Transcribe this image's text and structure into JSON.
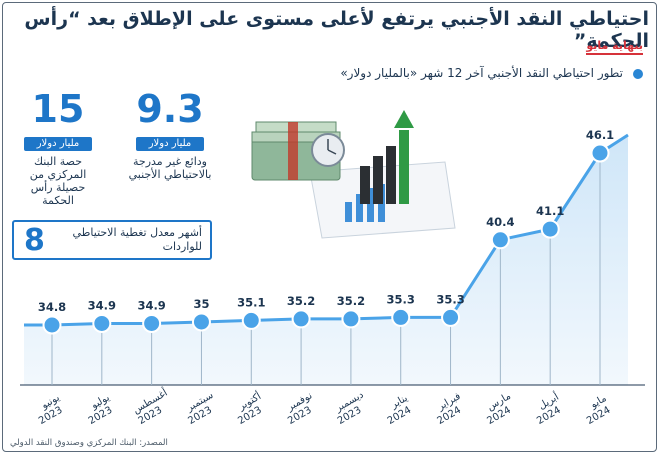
{
  "title": "احتياطي النقد الأجنبي يرتفع لأعلى مستوى على الإطلاق بعد “رأس الحكمة”",
  "tag": "بنهاية مايو",
  "subtitle": "تطور احتياطي النقد الأجنبي آخر 12 شهر «بالمليار دولار»",
  "stats": {
    "deposits": {
      "number": "9.3",
      "unit": "مليار دولار",
      "desc": "ودائع غير مدرجة بالاحتياطي الأجنبي"
    },
    "share": {
      "number": "15",
      "unit": "مليار دولار",
      "desc": "حصة البنك المركزي من حصيلة رأس الحكمة"
    },
    "cover": {
      "number": "8",
      "desc": "أشهر معدل تغطية الاحتياطي للواردات"
    }
  },
  "source": "المصدر: البنك المركزي وصندوق النقد الدولي",
  "colors": {
    "accent": "#1e76c8",
    "marker": "#4aa3e8",
    "area_top": "#cfe6f8",
    "area_bottom": "#f2f8fd",
    "title": "#1c3550",
    "tag": "#d6323a"
  },
  "chart_data": {
    "type": "area",
    "title": "تطور احتياطي النقد الأجنبي آخر 12 شهر «بالمليار دولار»",
    "categories": [
      "يونيو 2023",
      "يوليو 2023",
      "أغسطس 2023",
      "سبتمبر 2023",
      "أكتوبر 2023",
      "نوفمبر 2023",
      "ديسمبر 2023",
      "يناير 2024",
      "فبراير 2024",
      "مارس 2024",
      "أبريل 2024",
      "مايو 2024"
    ],
    "months": [
      "يونيو",
      "يوليو",
      "أغسطس",
      "سبتمبر",
      "أكتوبر",
      "نوفمبر",
      "ديسمبر",
      "يناير",
      "فبراير",
      "مارس",
      "أبريل",
      "مايو"
    ],
    "years": [
      "2023",
      "2023",
      "2023",
      "2023",
      "2023",
      "2023",
      "2023",
      "2024",
      "2024",
      "2024",
      "2024",
      "2024"
    ],
    "values": [
      34.8,
      34.9,
      34.9,
      35,
      35.1,
      35.2,
      35.2,
      35.3,
      35.3,
      40.4,
      41.1,
      46.1
    ],
    "value_labels": [
      "34.8",
      "34.9",
      "34.9",
      "35",
      "35.1",
      "35.2",
      "35.2",
      "35.3",
      "35.3",
      "40.4",
      "41.1",
      "46.1"
    ],
    "xlabel": "",
    "ylabel": "",
    "grid": false,
    "legend": "none"
  }
}
